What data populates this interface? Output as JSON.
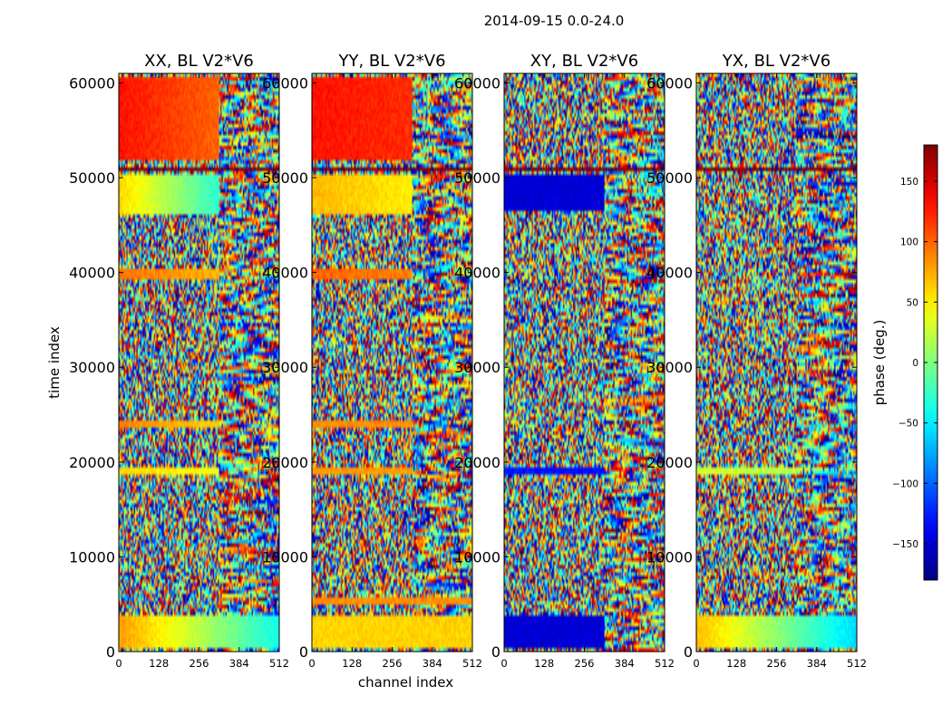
{
  "figure_title": "2014-09-15 0.0-24.0",
  "colorbar": {
    "label": "phase (deg.)",
    "range": [
      -180,
      180
    ],
    "ticks": [
      150,
      100,
      50,
      0,
      -50,
      -100,
      -150
    ],
    "tick_labels": [
      "150",
      "100",
      "50",
      "0",
      "−50",
      "−100",
      "−150"
    ],
    "colormap": "jet",
    "colors": [
      "#00007f",
      "#0000ff",
      "#007fff",
      "#00ffff",
      "#7fff7f",
      "#ffff00",
      "#ff7f00",
      "#ff0000",
      "#7f0000"
    ]
  },
  "chart_data": [
    {
      "type": "heatmap",
      "title": "XX, BL V2*V6",
      "xlabel": "",
      "ylabel": "time index",
      "xlim": [
        0,
        512
      ],
      "ylim": [
        0,
        61000
      ],
      "xticks": [
        0,
        128,
        256,
        384,
        512
      ],
      "xtick_labels": [
        "0",
        "128",
        "256",
        "384",
        "512"
      ],
      "yticks": [
        0,
        10000,
        20000,
        30000,
        40000,
        50000,
        60000
      ],
      "ytick_labels": [
        "0",
        "10000",
        "20000",
        "30000",
        "40000",
        "50000",
        "60000"
      ],
      "zlabel": "phase (deg.)",
      "zlim": [
        -180,
        180
      ],
      "smooth_bands": [
        {
          "t0": 500,
          "t1": 4000,
          "start_phase": 80,
          "end_phase": -40,
          "slope": -0.2,
          "coherent_to": 512
        },
        {
          "t0": 18500,
          "t1": 19500,
          "start_phase": 60,
          "end_phase": 40,
          "slope": 0,
          "coherent_to": 320
        },
        {
          "t0": 23500,
          "t1": 24300,
          "start_phase": 90,
          "end_phase": 60,
          "slope": 0,
          "coherent_to": 320
        },
        {
          "t0": 39200,
          "t1": 40500,
          "start_phase": 95,
          "end_phase": 70,
          "slope": 0.3,
          "coherent_to": 320
        },
        {
          "t0": 46000,
          "t1": 50200,
          "start_phase": 60,
          "end_phase": -30,
          "slope": 0,
          "coherent_to": 320
        },
        {
          "t0": 50800,
          "t1": 51100,
          "start_phase": 175,
          "end_phase": 175,
          "slope": 0,
          "coherent_to": 512
        },
        {
          "t0": 52000,
          "t1": 60800,
          "start_phase": 130,
          "end_phase": 100,
          "slope": 0,
          "coherent_to": 320
        }
      ]
    },
    {
      "type": "heatmap",
      "title": "YY, BL V2*V6",
      "xlabel": "channel index",
      "ylabel": "",
      "xlim": [
        0,
        512
      ],
      "ylim": [
        0,
        61000
      ],
      "xticks": [
        0,
        128,
        256,
        384,
        512
      ],
      "xtick_labels": [
        "0",
        "128",
        "256",
        "384",
        "512"
      ],
      "yticks": [
        0,
        10000,
        20000,
        30000,
        40000,
        50000,
        60000
      ],
      "ytick_labels": [
        "0",
        "10000",
        "20000",
        "30000",
        "40000",
        "50000",
        "60000"
      ],
      "zlabel": "phase (deg.)",
      "zlim": [
        -180,
        180
      ],
      "smooth_bands": [
        {
          "t0": 500,
          "t1": 4000,
          "start_phase": 60,
          "end_phase": 60,
          "slope": 0,
          "coherent_to": 512
        },
        {
          "t0": 5000,
          "t1": 5800,
          "start_phase": 85,
          "end_phase": 85,
          "slope": 0,
          "coherent_to": 512
        },
        {
          "t0": 18500,
          "t1": 19500,
          "start_phase": 80,
          "end_phase": 80,
          "slope": 0,
          "coherent_to": 320
        },
        {
          "t0": 23500,
          "t1": 24300,
          "start_phase": 85,
          "end_phase": 85,
          "slope": 0,
          "coherent_to": 320
        },
        {
          "t0": 39200,
          "t1": 40500,
          "start_phase": 100,
          "end_phase": 90,
          "slope": 0.3,
          "coherent_to": 320
        },
        {
          "t0": 46000,
          "t1": 50200,
          "start_phase": 70,
          "end_phase": 50,
          "slope": 0,
          "coherent_to": 320
        },
        {
          "t0": 50800,
          "t1": 51100,
          "start_phase": 175,
          "end_phase": 175,
          "slope": 0,
          "coherent_to": 512
        },
        {
          "t0": 52000,
          "t1": 60800,
          "start_phase": 130,
          "end_phase": 120,
          "slope": 0,
          "coherent_to": 320
        }
      ]
    },
    {
      "type": "heatmap",
      "title": "XY, BL V2*V6",
      "xlabel": "",
      "ylabel": "",
      "xlim": [
        0,
        512
      ],
      "ylim": [
        0,
        61000
      ],
      "xticks": [
        0,
        128,
        256,
        384,
        512
      ],
      "xtick_labels": [
        "0",
        "128",
        "256",
        "384",
        "512"
      ],
      "yticks": [
        0,
        10000,
        20000,
        30000,
        40000,
        50000,
        60000
      ],
      "ytick_labels": [
        "0",
        "10000",
        "20000",
        "30000",
        "40000",
        "50000",
        "60000"
      ],
      "zlabel": "phase (deg.)",
      "zlim": [
        -180,
        180
      ],
      "smooth_bands": [
        {
          "t0": 500,
          "t1": 4000,
          "start_phase": -150,
          "end_phase": -150,
          "slope": 0,
          "coherent_to": 320
        },
        {
          "t0": 18500,
          "t1": 19500,
          "start_phase": -130,
          "end_phase": -130,
          "slope": 0,
          "coherent_to": 320
        },
        {
          "t0": 46500,
          "t1": 50200,
          "start_phase": -150,
          "end_phase": -150,
          "slope": 0,
          "coherent_to": 320
        },
        {
          "t0": 50800,
          "t1": 51100,
          "start_phase": 175,
          "end_phase": 175,
          "slope": 0,
          "coherent_to": 512
        }
      ]
    },
    {
      "type": "heatmap",
      "title": "YX, BL V2*V6",
      "xlabel": "",
      "ylabel": "",
      "xlim": [
        0,
        512
      ],
      "ylim": [
        0,
        61000
      ],
      "xticks": [
        0,
        128,
        256,
        384,
        512
      ],
      "xtick_labels": [
        "0",
        "128",
        "256",
        "384",
        "512"
      ],
      "yticks": [
        0,
        10000,
        20000,
        30000,
        40000,
        50000,
        60000
      ],
      "ytick_labels": [
        "0",
        "10000",
        "20000",
        "30000",
        "40000",
        "50000",
        "60000"
      ],
      "zlabel": "phase (deg.)",
      "zlim": [
        -180,
        180
      ],
      "smooth_bands": [
        {
          "t0": 500,
          "t1": 4000,
          "start_phase": 70,
          "end_phase": -60,
          "slope": -0.2,
          "coherent_to": 512
        },
        {
          "t0": 18500,
          "t1": 19500,
          "start_phase": 30,
          "end_phase": 20,
          "slope": 0,
          "coherent_to": 320
        },
        {
          "t0": 50800,
          "t1": 51100,
          "start_phase": 175,
          "end_phase": 175,
          "slope": 0,
          "coherent_to": 512
        }
      ]
    }
  ]
}
